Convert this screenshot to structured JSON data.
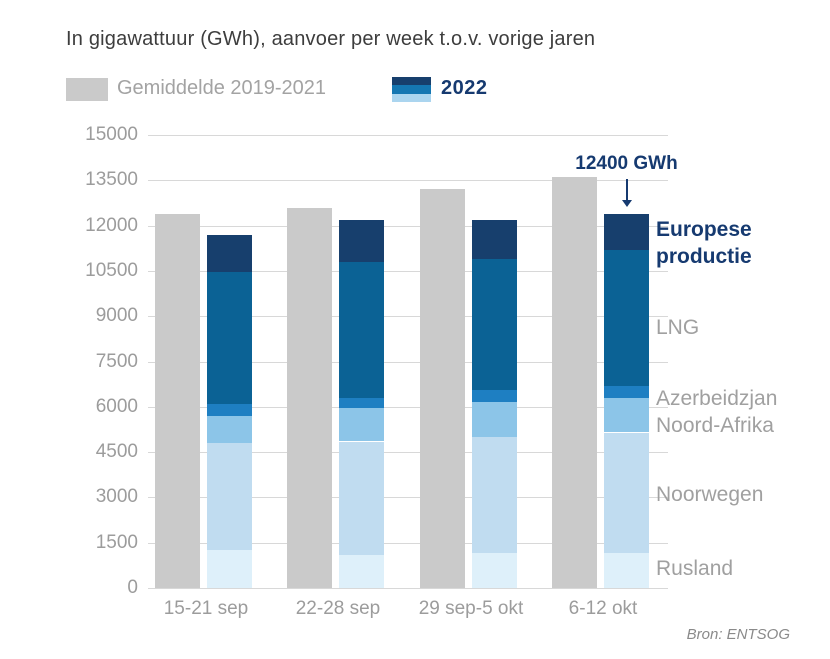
{
  "header": {
    "title": "In gigawattuur (GWh), aanvoer per week t.o.v. vorige jaren"
  },
  "legend": {
    "average_label": "Gemiddelde 2019-2021",
    "year_label": "2022"
  },
  "annotation": {
    "text": "12400 GWh",
    "points_to_category": "6-12 okt",
    "value": 12400
  },
  "source": "Bron: ENTSOG",
  "colors": {
    "average_bar": "#cacaca",
    "navy_text": "#163a70",
    "gray_text": "#9c9c9c",
    "title_text": "#3d3d3d",
    "gridline": "#d8d8d8",
    "legend_swatch_2022": [
      "#173f6d",
      "#1577b2",
      "#abd5ef"
    ]
  },
  "chart_data": {
    "type": "bar",
    "title": "In gigawattuur (GWh), aanvoer per week t.o.v. vorige jaren",
    "xlabel": "",
    "ylabel": "GWh",
    "ylim": [
      0,
      15000
    ],
    "ytick_step": 1500,
    "grid": true,
    "legend_position": "top",
    "categories": [
      "15-21 sep",
      "22-28 sep",
      "29 sep-5 okt",
      "6-12 okt"
    ],
    "average_series": {
      "name": "Gemiddelde 2019-2021",
      "color": "#cacaca",
      "values": [
        12400,
        12600,
        13200,
        13600
      ]
    },
    "stacked_series_2022": [
      {
        "name": "Rusland",
        "color": "#def0fa",
        "values": [
          1250,
          1100,
          1150,
          1150
        ]
      },
      {
        "name": "Noorwegen",
        "color": "#c0dcf0",
        "values": [
          3550,
          3750,
          3850,
          4000
        ]
      },
      {
        "name": "Noord-Afrika",
        "color": "#8cc5e8",
        "values": [
          900,
          1100,
          1150,
          1150
        ]
      },
      {
        "name": "Azerbeidzjan",
        "color": "#1e7fc2",
        "values": [
          400,
          350,
          400,
          400
        ]
      },
      {
        "name": "LNG",
        "color": "#0b6295",
        "values": [
          4350,
          4500,
          4350,
          4500
        ]
      },
      {
        "name": "Europese productie",
        "color": "#173f6d",
        "values": [
          1250,
          1400,
          1300,
          1200
        ]
      }
    ],
    "stack_totals_2022": [
      11700,
      12200,
      12200,
      12400
    ],
    "right_labels": [
      {
        "text": "Europese productie",
        "anchor_gwh": 11900,
        "emphasis": true
      },
      {
        "text": "LNG",
        "anchor_gwh": 8650,
        "emphasis": false
      },
      {
        "text": "Azerbeidzjan",
        "anchor_gwh": 6300,
        "emphasis": false
      },
      {
        "text": "Noord-Afrika",
        "anchor_gwh": 5400,
        "emphasis": false
      },
      {
        "text": "Noorwegen",
        "anchor_gwh": 3100,
        "emphasis": false
      },
      {
        "text": "Rusland",
        "anchor_gwh": 650,
        "emphasis": false
      }
    ]
  }
}
